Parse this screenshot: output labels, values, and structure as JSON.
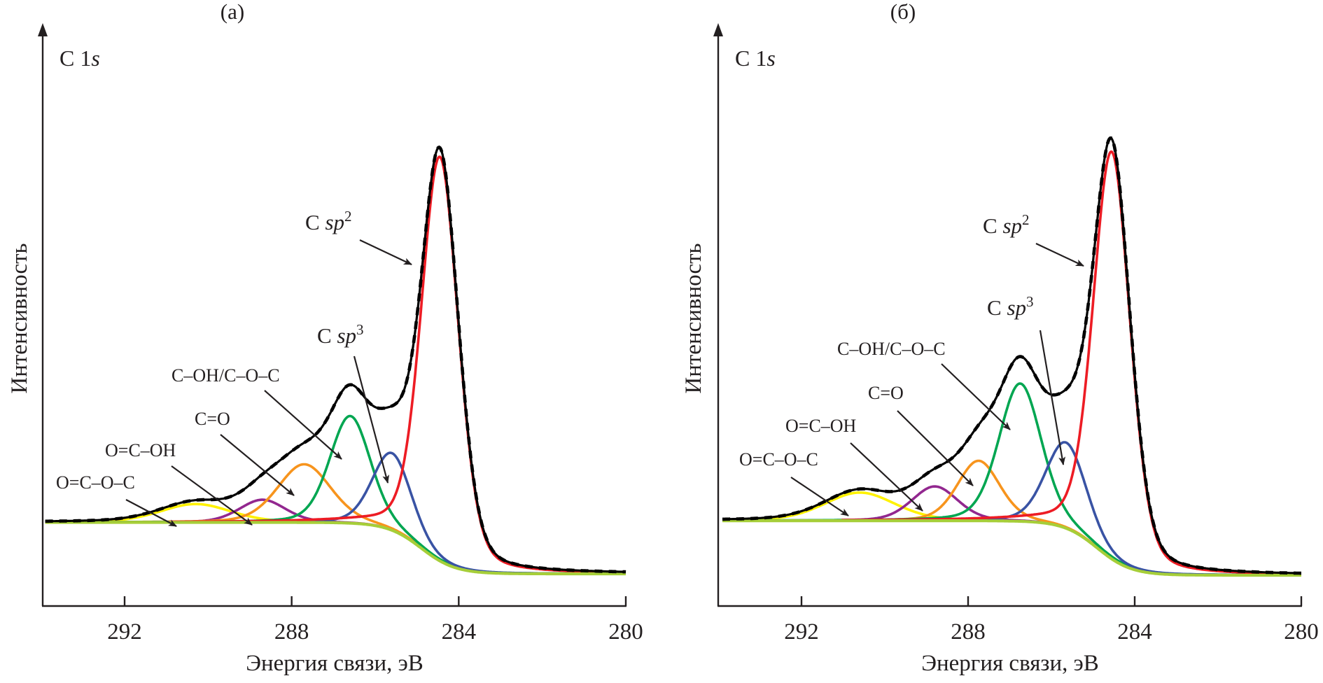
{
  "chart_data": [
    {
      "panel": "(a)",
      "type": "line",
      "title": "(a)",
      "spectrum_label": "C 1s",
      "xlabel": "Энергия связи, эВ",
      "ylabel": "Интенсивность",
      "x_reversed": true,
      "xlim": [
        293.9,
        280
      ],
      "xticks": [
        292,
        288,
        284,
        280
      ],
      "y_units": "arbitrary",
      "ylim": [
        -10,
        80
      ],
      "grid": false,
      "legend": "none (inline arrow annotations)",
      "background": {
        "left_level": 8.4,
        "right_level": 0.0,
        "step_center_eV": 284.9,
        "step_width_eV": 0.9
      },
      "envelope": {
        "color": "#000000",
        "style": "solid black with dashed overlay (fit)",
        "max": 67.3
      },
      "components": [
        {
          "name": "C sp2",
          "label": "C sp2",
          "sup": "2",
          "color": "#ed1c24",
          "center_eV": 284.45,
          "height": 66.0,
          "fwhm_eV": 1.05
        },
        {
          "name": "C sp3",
          "label": "C sp3",
          "sup": "3",
          "color": "#3953a4",
          "center_eV": 285.6,
          "height": 12.6,
          "fwhm_eV": 1.1
        },
        {
          "name": "C-OH/C-O-C",
          "label": "C–OH/C–O–C",
          "sup": "",
          "color": "#00a651",
          "center_eV": 286.6,
          "height": 17.5,
          "fwhm_eV": 1.15
        },
        {
          "name": "C=O",
          "label": "C=O",
          "sup": "",
          "color": "#f7941d",
          "center_eV": 287.7,
          "height": 9.5,
          "fwhm_eV": 1.5
        },
        {
          "name": "O=C-OH",
          "label": "O=C–OH",
          "sup": "",
          "color": "#92278f",
          "center_eV": 288.7,
          "height": 3.7,
          "fwhm_eV": 1.3
        },
        {
          "name": "O=C-O-C",
          "label": "O=C–O–C",
          "sup": "",
          "color": "#fff200",
          "center_eV": 290.3,
          "height": 3.0,
          "fwhm_eV": 2.0
        }
      ],
      "background_color": "#a6ce39"
    },
    {
      "panel": "(б)",
      "type": "line",
      "title": "(б)",
      "spectrum_label": "C 1s",
      "xlabel": "Энергия связи, эВ",
      "ylabel": "Интенсивность",
      "x_reversed": true,
      "xlim": [
        293.9,
        280
      ],
      "xticks": [
        292,
        288,
        284,
        280
      ],
      "y_units": "arbitrary",
      "ylim": [
        -10,
        80
      ],
      "grid": false,
      "legend": "none (inline arrow annotations)",
      "background": {
        "left_level": 8.9,
        "right_level": 0.0,
        "step_center_eV": 284.9,
        "step_width_eV": 0.9
      },
      "envelope": {
        "color": "#000000",
        "style": "solid black with dashed overlay (fit)",
        "max": 69.5
      },
      "components": [
        {
          "name": "C sp2",
          "label": "C sp2",
          "sup": "2",
          "color": "#ed1c24",
          "center_eV": 284.55,
          "height": 66.5,
          "fwhm_eV": 1.05
        },
        {
          "name": "C sp3",
          "label": "C sp3",
          "sup": "3",
          "color": "#3953a4",
          "center_eV": 285.65,
          "height": 14.0,
          "fwhm_eV": 1.15
        },
        {
          "name": "C-OH/C-O-C",
          "label": "C–OH/C–O–C",
          "sup": "",
          "color": "#00a651",
          "center_eV": 286.75,
          "height": 22.5,
          "fwhm_eV": 1.2
        },
        {
          "name": "C=O",
          "label": "C=O",
          "sup": "",
          "color": "#f7941d",
          "center_eV": 287.75,
          "height": 9.8,
          "fwhm_eV": 1.2
        },
        {
          "name": "O=C-OH",
          "label": "O=C–OH",
          "sup": "",
          "color": "#92278f",
          "center_eV": 288.8,
          "height": 5.6,
          "fwhm_eV": 1.3
        },
        {
          "name": "O=C-O-C",
          "label": "O=C–O–C",
          "sup": "",
          "color": "#fff200",
          "center_eV": 290.6,
          "height": 4.6,
          "fwhm_eV": 2.0
        }
      ],
      "background_color": "#a6ce39"
    }
  ],
  "labels": {
    "panel_a": "(a)",
    "panel_b": "(б)",
    "c1s_main": "C 1",
    "c1s_italic": "s",
    "sp_prefix": "C ",
    "sp_italic": "sp",
    "sup2": "2",
    "sup3": "3",
    "coh": "C–OH/C–O–C",
    "co": "C=O",
    "ocoh": "O=C–OH",
    "ococ": "O=C–O–C",
    "xlabel": "Энергия связи, эВ",
    "ylabel": "Интенсивность",
    "ticks": [
      "292",
      "288",
      "284",
      "280"
    ]
  }
}
